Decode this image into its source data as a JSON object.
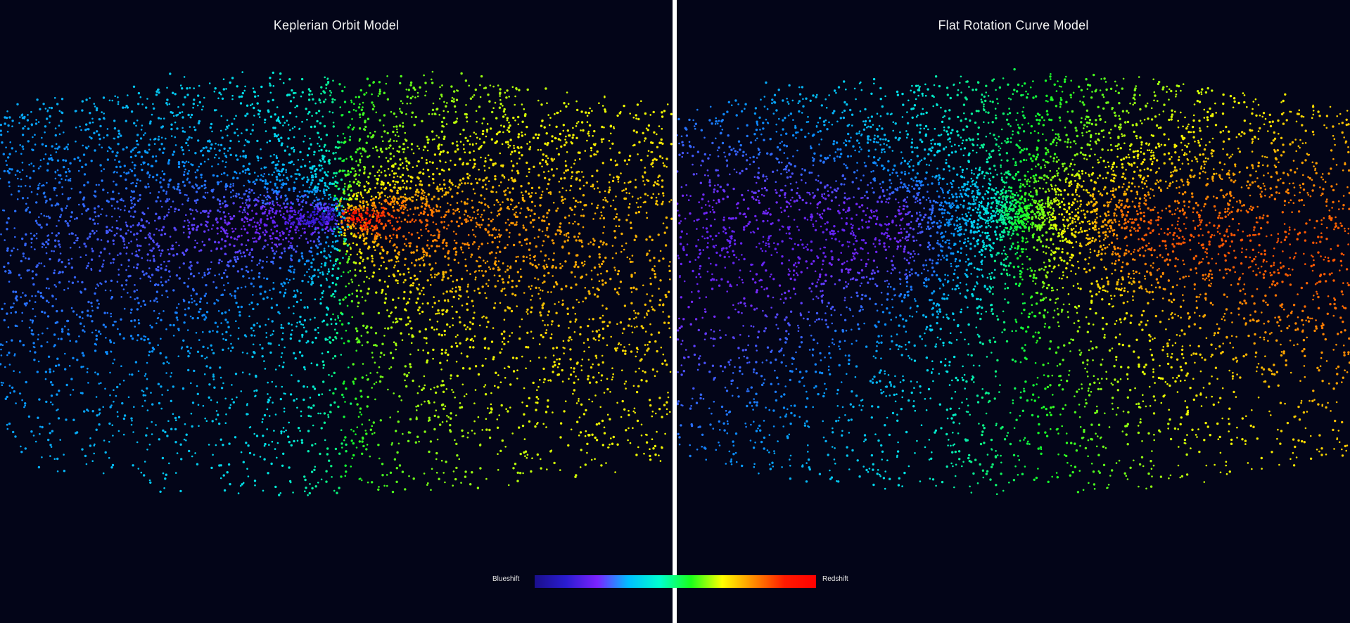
{
  "panels": [
    {
      "id": "left",
      "title": "Keplerian Orbit Model",
      "model": "keplerian"
    },
    {
      "id": "right",
      "title": "Flat Rotation Curve Model",
      "model": "flat"
    }
  ],
  "legend": {
    "left_label": "Blueshift",
    "right_label": "Redshift",
    "gradient": [
      "#1a0f8c",
      "#2a1cd0",
      "#7a22ff",
      "#00bfff",
      "#00ffd0",
      "#1aff1a",
      "#ffff00",
      "#ff8c00",
      "#ff1a00",
      "#ff0000"
    ]
  },
  "colors": {
    "background": "#030518",
    "divider": "#ffffff",
    "title_text": "#f2f2f2"
  }
}
